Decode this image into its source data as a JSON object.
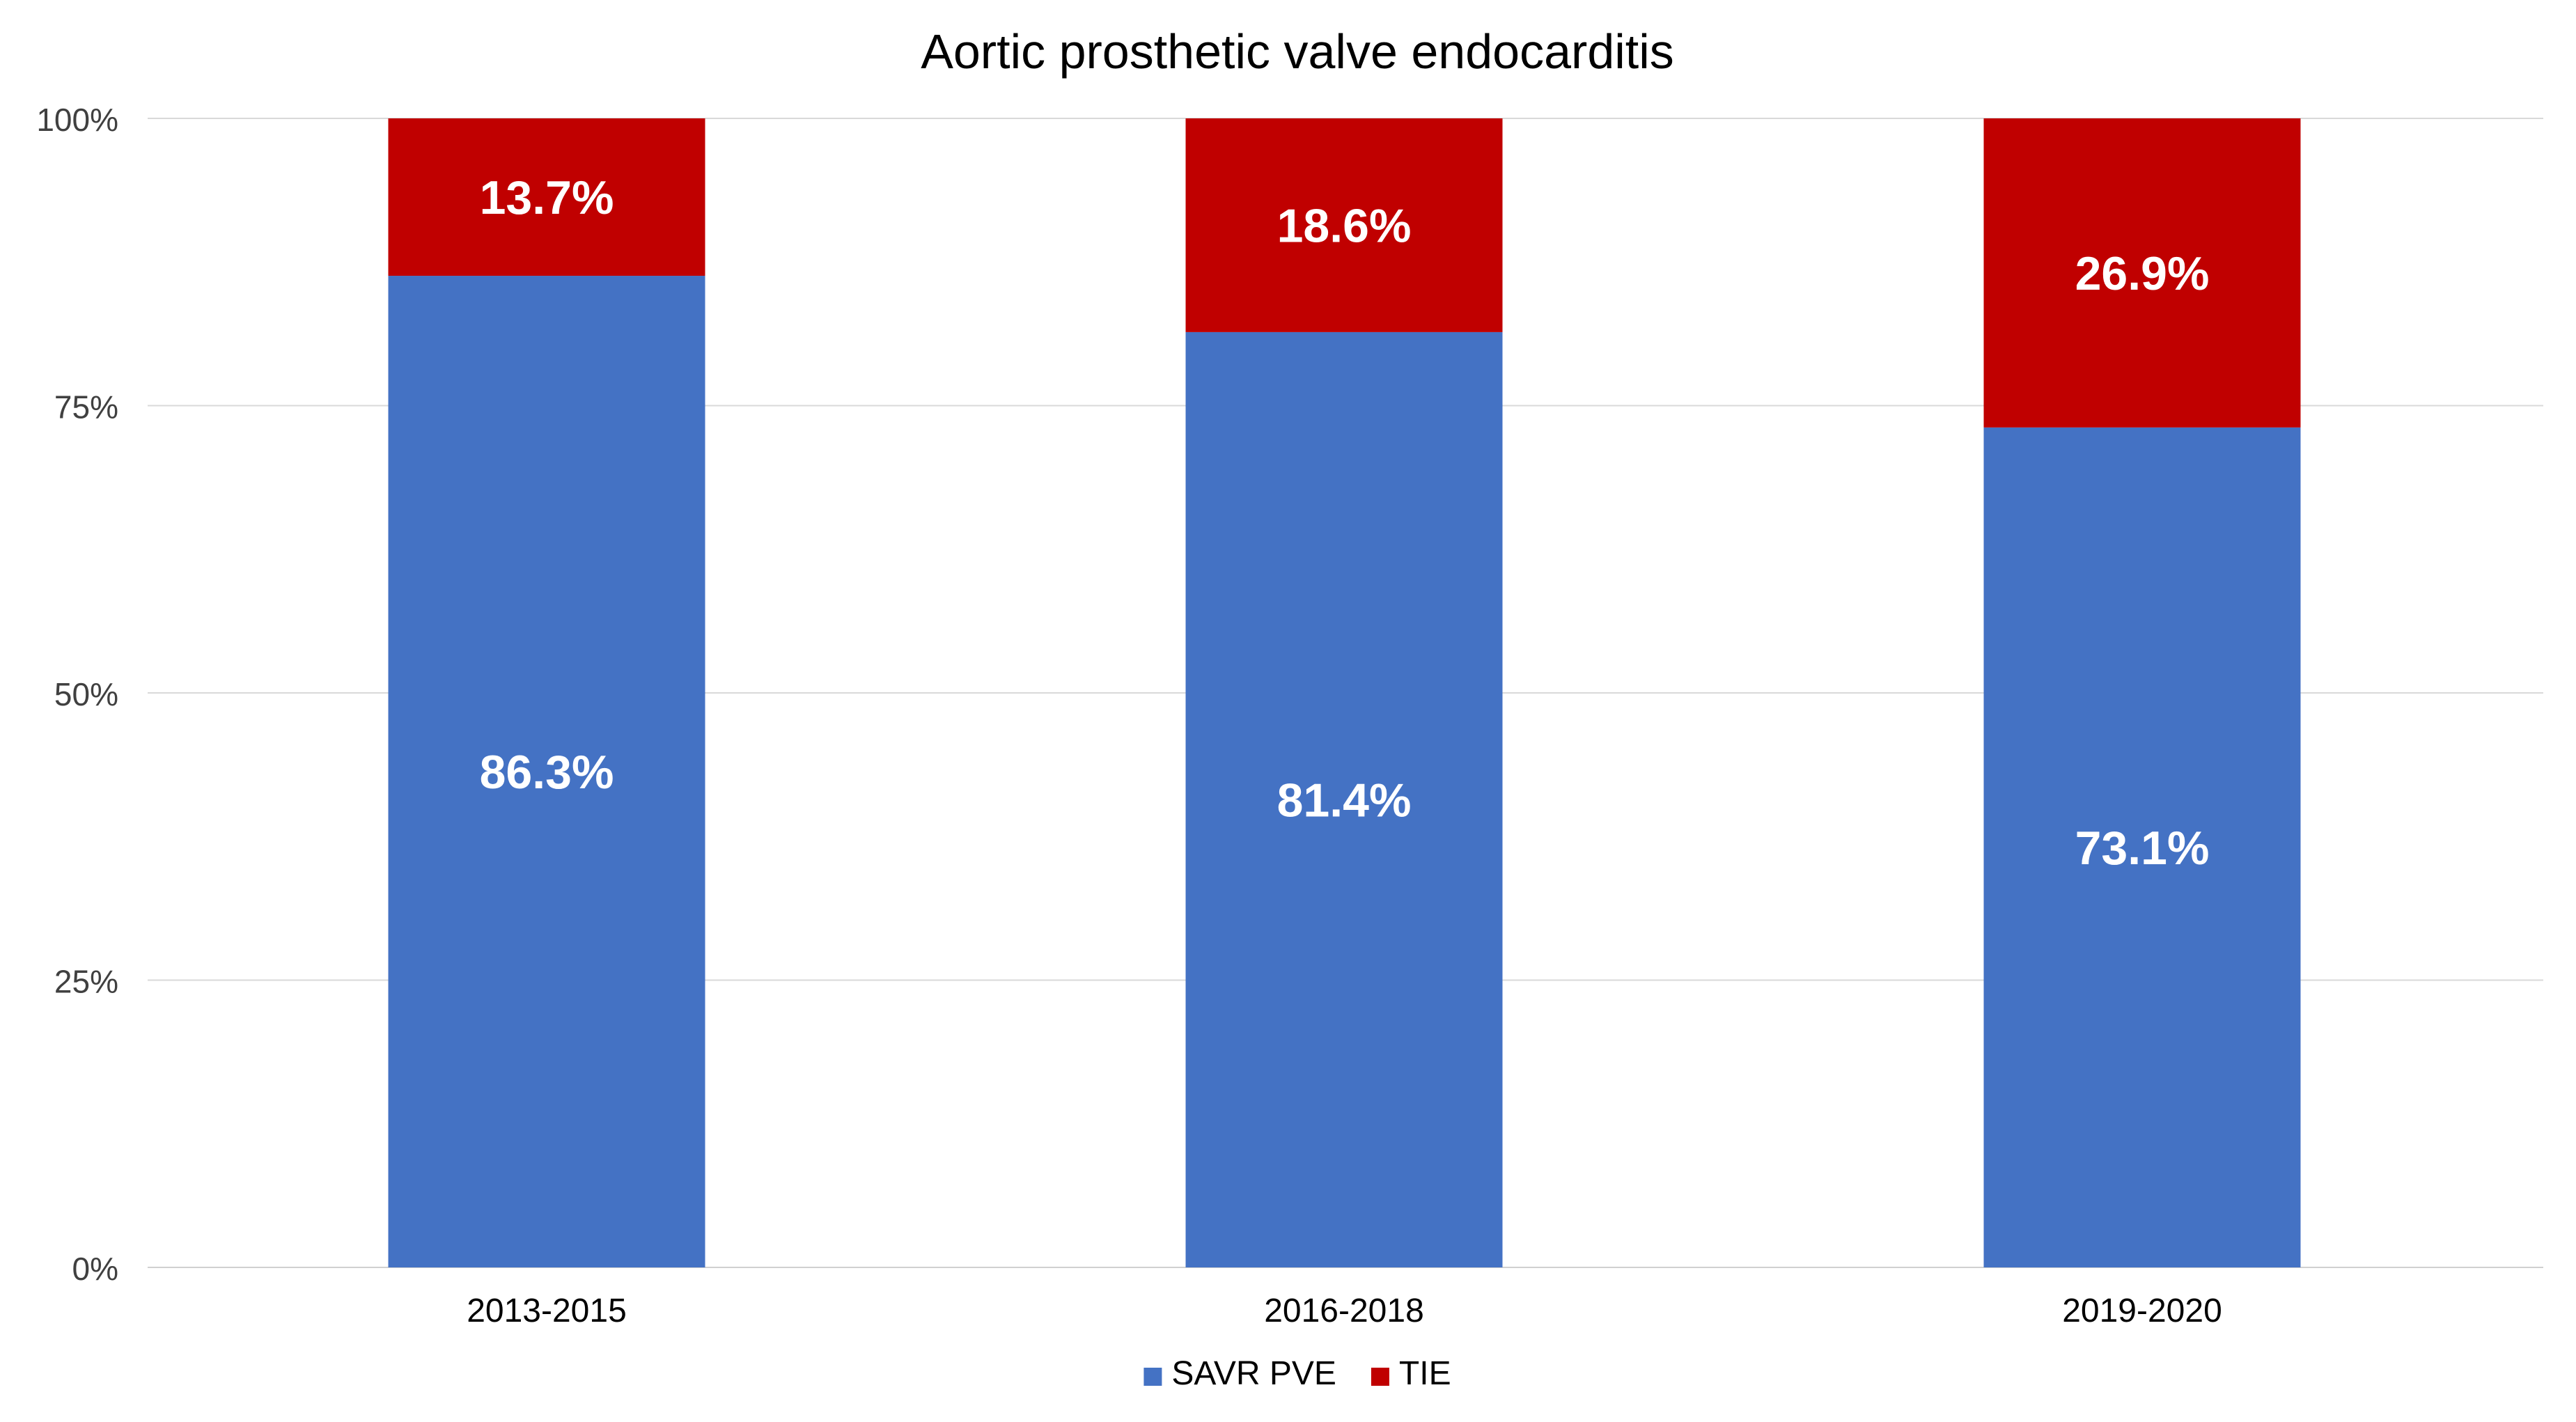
{
  "chart_data": {
    "type": "bar",
    "stacked": true,
    "percent_stacked": true,
    "title": "Aortic prosthetic valve endocarditis",
    "xlabel": "",
    "ylabel": "",
    "categories": [
      "2013-2015",
      "2016-2018",
      "2019-2020"
    ],
    "series": [
      {
        "name": "SAVR PVE",
        "color": "#4472C4",
        "values": [
          86.3,
          81.4,
          73.1
        ],
        "labels": [
          "86.3%",
          "81.4%",
          "73.1%"
        ]
      },
      {
        "name": "TIE",
        "color": "#C00000",
        "values": [
          13.7,
          18.6,
          26.9
        ],
        "labels": [
          "13.7%",
          "18.6%",
          "26.9%"
        ]
      }
    ],
    "ylim": [
      0,
      100
    ],
    "yticks": [
      0,
      25,
      50,
      75,
      100
    ],
    "ytick_labels": [
      "0%",
      "25%",
      "50%",
      "75%",
      "100%"
    ],
    "grid": true,
    "legend": "bottom-center"
  }
}
